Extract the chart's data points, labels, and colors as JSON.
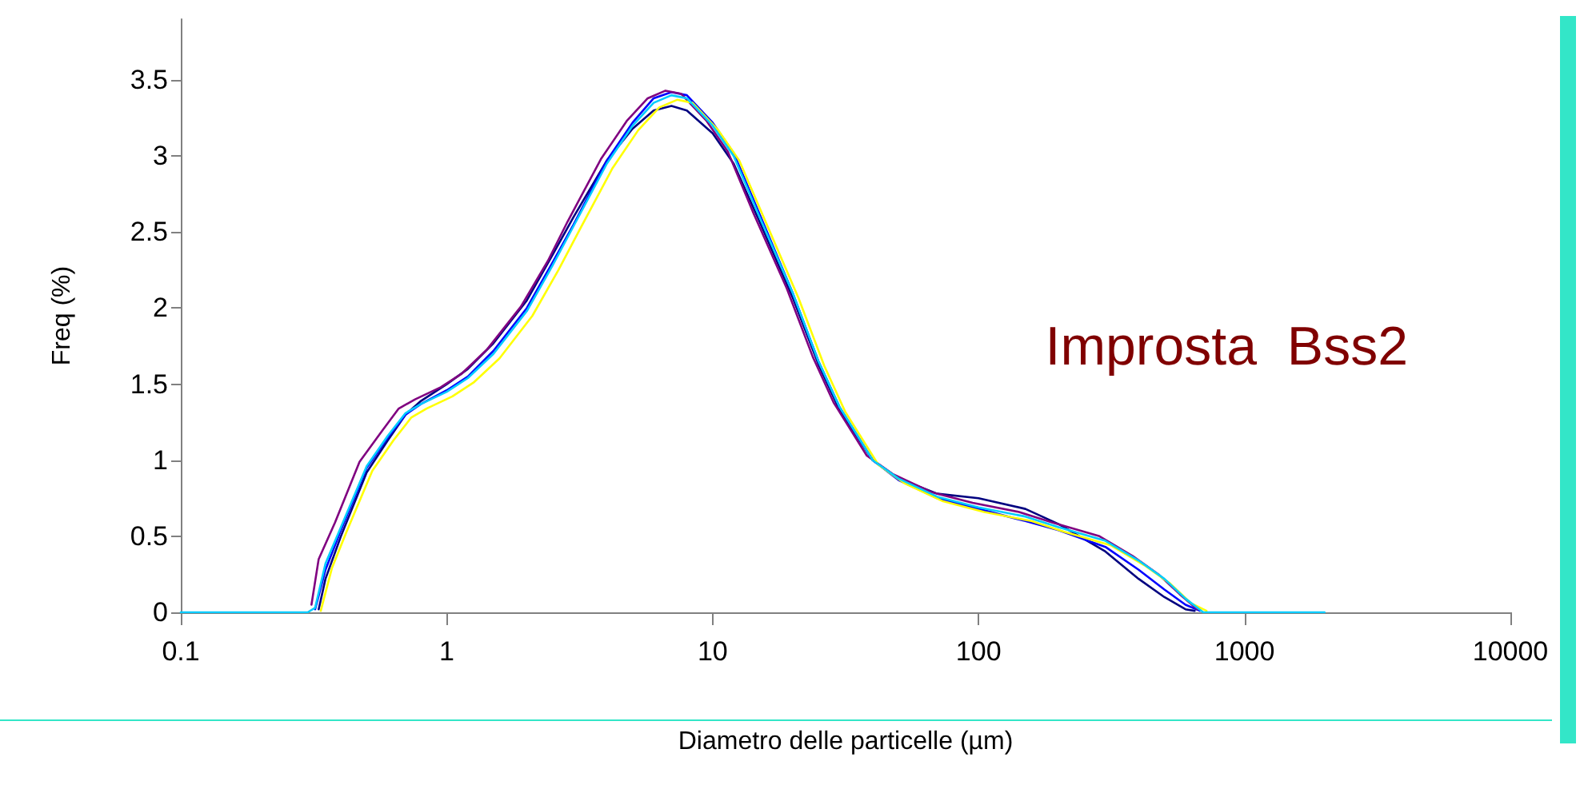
{
  "chart_data": {
    "type": "line",
    "xlabel": "Diametro delle particelle (µm)",
    "ylabel": "Freq (%)",
    "annotations": [
      "Improsta  Bss2"
    ],
    "log": "x",
    "xlim": [
      0.1,
      10000
    ],
    "xticks": [
      0.1,
      1,
      10,
      100,
      1000,
      10000
    ],
    "ylim": [
      0,
      3.9
    ],
    "yticks": [
      0,
      0.5,
      1,
      1.5,
      2,
      2.5,
      3,
      3.5
    ],
    "grid": false,
    "marker": "none",
    "line_style": "solid",
    "series": [
      {
        "color": "#000080",
        "x": [
          0.33,
          0.35,
          0.4,
          0.5,
          0.6,
          0.7,
          0.8,
          1,
          1.2,
          1.5,
          2,
          2.5,
          3,
          4,
          5,
          6,
          7,
          8,
          10,
          12,
          15,
          20,
          25,
          30,
          40,
          50,
          70,
          100,
          150,
          200,
          300,
          400,
          500,
          600,
          650
        ],
        "values": [
          0.02,
          0.22,
          0.5,
          0.92,
          1.13,
          1.3,
          1.39,
          1.5,
          1.6,
          1.77,
          2.05,
          2.35,
          2.6,
          2.97,
          3.18,
          3.3,
          3.33,
          3.3,
          3.15,
          2.95,
          2.57,
          2.07,
          1.63,
          1.33,
          1,
          0.88,
          0.78,
          0.75,
          0.68,
          0.58,
          0.4,
          0.22,
          0.1,
          0.02,
          0.01
        ]
      },
      {
        "color": "#0000ff",
        "x": [
          0.32,
          0.35,
          0.4,
          0.5,
          0.6,
          0.7,
          0.8,
          1,
          1.2,
          1.5,
          2,
          2.5,
          3,
          4,
          5,
          6,
          7,
          8,
          10,
          12,
          15,
          20,
          25,
          30,
          40,
          50,
          70,
          100,
          150,
          200,
          300,
          400,
          500,
          600,
          680
        ],
        "values": [
          0.02,
          0.28,
          0.54,
          0.95,
          1.15,
          1.3,
          1.37,
          1.46,
          1.55,
          1.72,
          2.0,
          2.3,
          2.55,
          2.97,
          3.22,
          3.38,
          3.42,
          3.4,
          3.22,
          3.02,
          2.62,
          2.1,
          1.65,
          1.35,
          1,
          0.87,
          0.75,
          0.68,
          0.6,
          0.54,
          0.43,
          0.28,
          0.15,
          0.05,
          0.01
        ]
      },
      {
        "color": "#800080",
        "x": [
          0.31,
          0.33,
          0.38,
          0.47,
          0.57,
          0.66,
          0.76,
          0.95,
          1.14,
          1.42,
          1.9,
          2.4,
          2.85,
          3.8,
          4.75,
          5.7,
          6.65,
          7.6,
          9.5,
          11.4,
          14.2,
          19,
          23.8,
          28.5,
          38,
          47.5,
          66.5,
          95,
          142,
          190,
          285,
          380,
          475,
          570,
          665
        ],
        "values": [
          0.05,
          0.35,
          0.59,
          0.99,
          1.19,
          1.34,
          1.4,
          1.48,
          1.57,
          1.73,
          2.01,
          2.31,
          2.57,
          2.98,
          3.23,
          3.38,
          3.43,
          3.41,
          3.23,
          3.03,
          2.63,
          2.13,
          1.68,
          1.38,
          1.03,
          0.91,
          0.79,
          0.72,
          0.66,
          0.59,
          0.5,
          0.37,
          0.25,
          0.12,
          0.02
        ]
      },
      {
        "color": "#ffff00",
        "x": [
          0.336,
          0.37,
          0.42,
          0.525,
          0.63,
          0.735,
          0.84,
          1.05,
          1.26,
          1.58,
          2.1,
          2.63,
          3.15,
          4.2,
          5.25,
          6.3,
          7.35,
          8.4,
          10.5,
          12.6,
          15.8,
          21,
          26.3,
          31.5,
          42,
          52.5,
          73.5,
          105,
          158,
          210,
          315,
          420,
          525,
          630,
          720
        ],
        "values": [
          0.01,
          0.29,
          0.53,
          0.93,
          1.13,
          1.28,
          1.34,
          1.42,
          1.51,
          1.67,
          1.95,
          2.25,
          2.51,
          2.92,
          3.17,
          3.32,
          3.37,
          3.35,
          3.17,
          2.97,
          2.57,
          2.07,
          1.62,
          1.32,
          0.97,
          0.85,
          0.73,
          0.66,
          0.6,
          0.53,
          0.44,
          0.31,
          0.19,
          0.06,
          0.01
        ]
      },
      {
        "color": "#00ccff",
        "x": [
          0.1,
          0.3,
          0.32,
          0.35,
          0.4,
          0.5,
          0.6,
          0.7,
          0.8,
          1,
          1.2,
          1.5,
          2,
          2.5,
          3,
          4,
          5,
          6,
          7,
          8,
          10,
          12,
          15,
          20,
          25,
          30,
          40,
          50,
          70,
          100,
          150,
          200,
          300,
          400,
          500,
          600,
          700,
          2000
        ],
        "values": [
          0,
          0,
          0.03,
          0.32,
          0.56,
          0.96,
          1.16,
          1.31,
          1.37,
          1.45,
          1.54,
          1.7,
          1.98,
          2.28,
          2.54,
          2.95,
          3.2,
          3.35,
          3.4,
          3.38,
          3.2,
          3.0,
          2.6,
          2.1,
          1.65,
          1.35,
          1,
          0.88,
          0.76,
          0.69,
          0.63,
          0.56,
          0.47,
          0.34,
          0.22,
          0.09,
          0,
          0
        ]
      }
    ]
  }
}
